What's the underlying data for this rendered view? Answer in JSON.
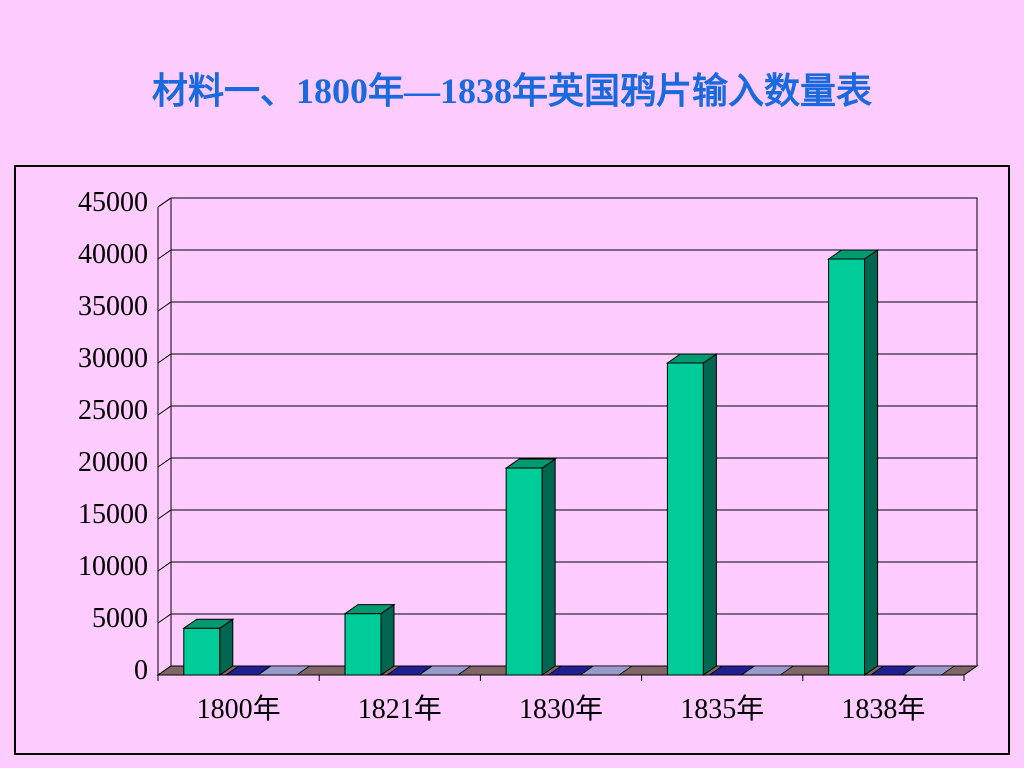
{
  "title": "材料一、1800年—1838年英国鸦片输入数量表",
  "chart_data": {
    "type": "bar",
    "title": "",
    "xlabel": "",
    "ylabel": "",
    "categories": [
      "1800年",
      "1821年",
      "1830年",
      "1835年",
      "1838年"
    ],
    "series": [
      {
        "values": [
          4500,
          5900,
          19900,
          30000,
          40000
        ]
      }
    ],
    "ylim": [
      0,
      45000
    ],
    "ytick_step": 5000,
    "grid": true,
    "three_d": true,
    "colors": {
      "bar_front": "#00cc99",
      "bar_side": "#006650",
      "bar_top": "#009970",
      "floor_dark": "#1f1f8f",
      "floor_light": "#9999cc",
      "floor_edge": "#806666"
    }
  }
}
